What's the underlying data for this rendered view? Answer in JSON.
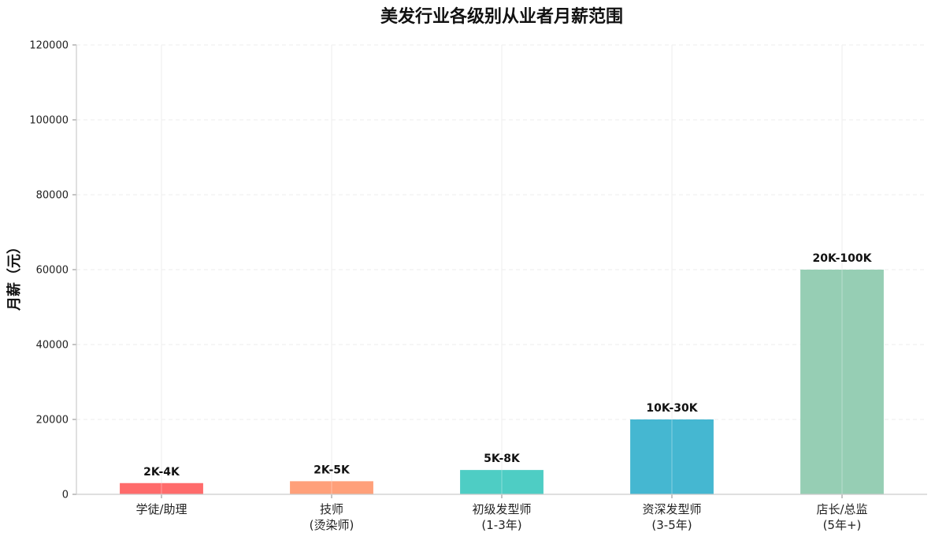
{
  "chart_data": {
    "type": "bar",
    "title": "美发行业各级别从业者月薪范围",
    "xlabel": "",
    "ylabel": "月薪（元）",
    "ylim": [
      0,
      120000
    ],
    "yticks": [
      "0",
      "20000",
      "40000",
      "60000",
      "80000",
      "100000",
      "120000"
    ],
    "grid": true,
    "categories": [
      [
        "学徒/助理"
      ],
      [
        "技师",
        "(烫染师)"
      ],
      [
        "初级发型师",
        "(1-3年)"
      ],
      [
        "资深发型师",
        "(3-5年)"
      ],
      [
        "店长/总监",
        "(5年+)"
      ]
    ],
    "values": [
      3000,
      3500,
      6500,
      20000,
      60000
    ],
    "data_labels": [
      "2K-4K",
      "2K-5K",
      "5K-8K",
      "10K-30K",
      "20K-100K"
    ],
    "colors": [
      "#ff6b6b",
      "#ffa07a",
      "#4ecdc4",
      "#45b7d1",
      "#96ceb4"
    ]
  }
}
